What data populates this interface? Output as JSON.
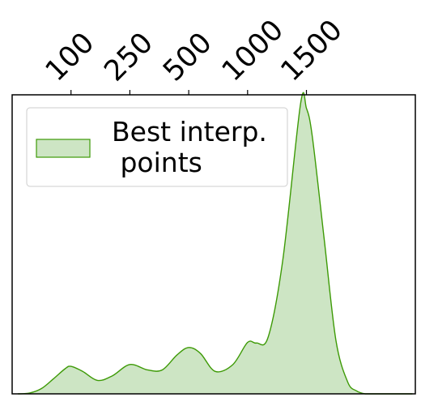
{
  "chart_data": {
    "type": "area",
    "title": "",
    "xlabel": "",
    "ylabel": "",
    "x_axis_position": "top",
    "y_axis_visible": false,
    "tick_rotation_deg": 45,
    "categories": [
      "100",
      "250",
      "500",
      "1000",
      "1500"
    ],
    "xlim": [
      -1.0,
      5.85
    ],
    "ylim": [
      0,
      1.0
    ],
    "grid": false,
    "legend": {
      "position": "top-left",
      "entries": [
        "Best interp.\n points"
      ]
    },
    "series": [
      {
        "name": "Best interp.\n points",
        "color_fill": "#cde5c4",
        "color_line": "#3d9a06",
        "fill_alpha": 1.0,
        "x": [
          -0.9,
          -0.7,
          -0.5,
          -0.3,
          -0.1,
          0.0,
          0.2,
          0.45,
          0.7,
          1.0,
          1.3,
          1.55,
          1.8,
          2.0,
          2.2,
          2.45,
          2.75,
          3.0,
          3.15,
          3.35,
          3.6,
          3.9,
          4.0,
          4.1,
          4.3,
          4.5,
          4.7,
          4.85,
          5.0,
          5.2,
          5.4,
          5.6,
          5.8
        ],
        "y": [
          0.0,
          0.003,
          0.018,
          0.05,
          0.084,
          0.092,
          0.075,
          0.045,
          0.06,
          0.098,
          0.08,
          0.08,
          0.13,
          0.155,
          0.135,
          0.075,
          0.098,
          0.172,
          0.17,
          0.19,
          0.45,
          0.97,
          0.955,
          0.86,
          0.52,
          0.18,
          0.04,
          0.01,
          0.0,
          0.0,
          0.0,
          0.0,
          0.0
        ]
      }
    ]
  }
}
